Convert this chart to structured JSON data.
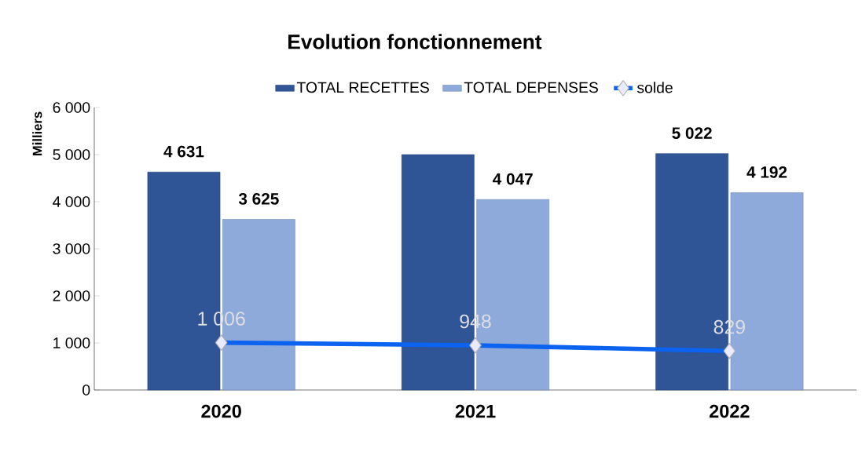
{
  "chart_data": {
    "type": "bar",
    "title": "Evolution  fonctionnement",
    "ylabel": "Milliers",
    "categories": [
      "2020",
      "2021",
      "2022"
    ],
    "series": [
      {
        "name": "TOTAL RECETTES",
        "color": "#2f5597",
        "values": [
          4631,
          5000,
          5022
        ],
        "value_labels": [
          "4 631",
          null,
          "5 022"
        ]
      },
      {
        "name": "TOTAL DEPENSES",
        "color": "#8eaadb",
        "values": [
          3625,
          4047,
          4192
        ],
        "value_labels": [
          "3 625",
          "4 047",
          "4 192"
        ]
      },
      {
        "name": "solde",
        "type": "line",
        "color": "#0b63f0",
        "values": [
          1006,
          948,
          829
        ],
        "value_labels": [
          "1 006",
          "948",
          "829"
        ]
      }
    ],
    "marker": "diamond",
    "line_style": "solid",
    "ylim": [
      0,
      6000
    ],
    "yticks": [
      0,
      {
        "value": 1000,
        "label": "1 000"
      },
      {
        "value": 2000,
        "label": "2 000"
      },
      {
        "value": 3000,
        "label": "3 000"
      },
      {
        "value": 4000,
        "label": "4 000"
      },
      {
        "value": 5000,
        "label": "5 000"
      },
      {
        "value": 6000,
        "label": "6 000"
      }
    ],
    "legend": "top",
    "grid": false
  }
}
